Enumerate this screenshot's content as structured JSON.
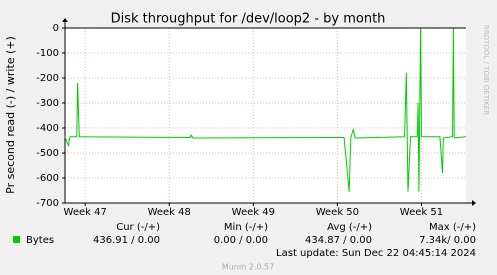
{
  "chart_data": {
    "type": "line",
    "title": "Disk throughput for /dev/loop2 - by month",
    "y_label": "Pr second read (-) / write (+)",
    "side_label": "RRDTOOL / TOBI OETIKER",
    "x": [
      46.76,
      46.8,
      46.82,
      46.9,
      46.91,
      46.93,
      48.25,
      48.26,
      48.28,
      49.97,
      50.08,
      50.14,
      50.16,
      50.19,
      50.21,
      50.8,
      50.82,
      50.84,
      50.87,
      50.95,
      50.96,
      50.97,
      50.99,
      51.0,
      51.22,
      51.25,
      51.26,
      51.37,
      51.38,
      51.39,
      51.53
    ],
    "series": [
      {
        "name": "Bytes",
        "color": "#00cc00",
        "values": [
          -435,
          -470,
          -435,
          -435,
          -220,
          -435,
          -438,
          -428,
          -440,
          -438,
          -438,
          -655,
          -438,
          -405,
          -440,
          -435,
          -180,
          -655,
          -435,
          -435,
          -300,
          -655,
          0,
          -435,
          -435,
          -580,
          -440,
          -435,
          0,
          -440,
          -435
        ]
      }
    ],
    "xlim": [
      46.76,
      51.53
    ],
    "xticks": [
      {
        "value": 47,
        "label": "Week 47"
      },
      {
        "value": 48,
        "label": "Week 48"
      },
      {
        "value": 49,
        "label": "Week 49"
      },
      {
        "value": 50,
        "label": "Week 50"
      },
      {
        "value": 51,
        "label": "Week 51"
      }
    ],
    "ylim": [
      -700,
      0
    ],
    "yticks": [
      0,
      -100,
      -200,
      -300,
      -400,
      -500,
      -600,
      -700
    ],
    "grid": true,
    "legend_table": {
      "headers": [
        "Cur (-/+)",
        "Min (-/+)",
        "Avg (-/+)",
        "Max (-/+)"
      ],
      "row": [
        "436.91 /  0.00",
        "0.00 /  0.00",
        "434.87 /  0.00",
        "7.34k/  0.00"
      ]
    },
    "last_update": "Last update: Sun Dec 22 04:45:14 2024",
    "footer": "Munin 2.0.57"
  }
}
